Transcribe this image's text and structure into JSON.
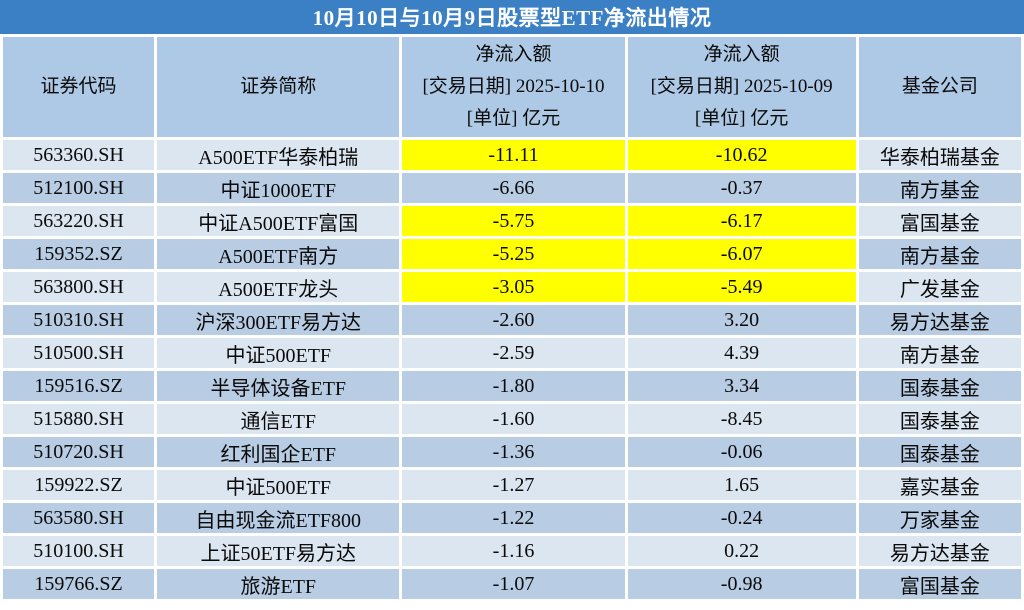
{
  "title": "10月10日与10月9日股票型ETF净流出情况",
  "colors": {
    "title_bar": "#3B7FC4",
    "header_bg": "#AEC9E5",
    "row_light": "#DCE6F1",
    "row_dark": "#B8CCE4",
    "highlight_yellow": "#FFFF00",
    "title_text": "#FFFFFF",
    "body_text": "#0A0A0A"
  },
  "table": {
    "headers": [
      {
        "lines": [
          "证券代码"
        ]
      },
      {
        "lines": [
          "证券简称"
        ]
      },
      {
        "lines": [
          "净流入额",
          "[交易日期] 2025-10-10",
          "[单位] 亿元"
        ]
      },
      {
        "lines": [
          "净流入额",
          "[交易日期] 2025-10-09",
          "[单位] 亿元"
        ]
      },
      {
        "lines": [
          "基金公司"
        ]
      }
    ],
    "rows": [
      {
        "code": "563360.SH",
        "name": "A500ETF华泰柏瑞",
        "flow_1010": "-11.11",
        "flow_1009": "-10.62",
        "company": "华泰柏瑞基金",
        "highlight": true
      },
      {
        "code": "512100.SH",
        "name": "中证1000ETF",
        "flow_1010": "-6.66",
        "flow_1009": "-0.37",
        "company": "南方基金",
        "highlight": false
      },
      {
        "code": "563220.SH",
        "name": "中证A500ETF富国",
        "flow_1010": "-5.75",
        "flow_1009": "-6.17",
        "company": "富国基金",
        "highlight": true
      },
      {
        "code": "159352.SZ",
        "name": "A500ETF南方",
        "flow_1010": "-5.25",
        "flow_1009": "-6.07",
        "company": "南方基金",
        "highlight": true
      },
      {
        "code": "563800.SH",
        "name": "A500ETF龙头",
        "flow_1010": "-3.05",
        "flow_1009": "-5.49",
        "company": "广发基金",
        "highlight": true
      },
      {
        "code": "510310.SH",
        "name": "沪深300ETF易方达",
        "flow_1010": "-2.60",
        "flow_1009": "3.20",
        "company": "易方达基金",
        "highlight": false
      },
      {
        "code": "510500.SH",
        "name": "中证500ETF",
        "flow_1010": "-2.59",
        "flow_1009": "4.39",
        "company": "南方基金",
        "highlight": false
      },
      {
        "code": "159516.SZ",
        "name": "半导体设备ETF",
        "flow_1010": "-1.80",
        "flow_1009": "3.34",
        "company": "国泰基金",
        "highlight": false
      },
      {
        "code": "515880.SH",
        "name": "通信ETF",
        "flow_1010": "-1.60",
        "flow_1009": "-8.45",
        "company": "国泰基金",
        "highlight": false
      },
      {
        "code": "510720.SH",
        "name": "红利国企ETF",
        "flow_1010": "-1.36",
        "flow_1009": "-0.06",
        "company": "国泰基金",
        "highlight": false
      },
      {
        "code": "159922.SZ",
        "name": "中证500ETF",
        "flow_1010": "-1.27",
        "flow_1009": "1.65",
        "company": "嘉实基金",
        "highlight": false
      },
      {
        "code": "563580.SH",
        "name": "自由现金流ETF800",
        "flow_1010": "-1.22",
        "flow_1009": "-0.24",
        "company": "万家基金",
        "highlight": false
      },
      {
        "code": "510100.SH",
        "name": "上证50ETF易方达",
        "flow_1010": "-1.16",
        "flow_1009": "0.22",
        "company": "易方达基金",
        "highlight": false
      },
      {
        "code": "159766.SZ",
        "name": "旅游ETF",
        "flow_1010": "-1.07",
        "flow_1009": "-0.98",
        "company": "富国基金",
        "highlight": false
      }
    ]
  },
  "chart_data": {
    "type": "table",
    "title": "10月10日与10月9日股票型ETF净流出情况",
    "columns": [
      "证券代码",
      "证券简称",
      "净流入额 [交易日期] 2025-10-10 [单位] 亿元",
      "净流入额 [交易日期] 2025-10-09 [单位] 亿元",
      "基金公司"
    ],
    "units": "亿元",
    "rows": [
      [
        "563360.SH",
        "A500ETF华泰柏瑞",
        -11.11,
        -10.62,
        "华泰柏瑞基金"
      ],
      [
        "512100.SH",
        "中证1000ETF",
        -6.66,
        -0.37,
        "南方基金"
      ],
      [
        "563220.SH",
        "中证A500ETF富国",
        -5.75,
        -6.17,
        "富国基金"
      ],
      [
        "159352.SZ",
        "A500ETF南方",
        -5.25,
        -6.07,
        "南方基金"
      ],
      [
        "563800.SH",
        "A500ETF龙头",
        -3.05,
        -5.49,
        "广发基金"
      ],
      [
        "510310.SH",
        "沪深300ETF易方达",
        -2.6,
        3.2,
        "易方达基金"
      ],
      [
        "510500.SH",
        "中证500ETF",
        -2.59,
        4.39,
        "南方基金"
      ],
      [
        "159516.SZ",
        "半导体设备ETF",
        -1.8,
        3.34,
        "国泰基金"
      ],
      [
        "515880.SH",
        "通信ETF",
        -1.6,
        -8.45,
        "国泰基金"
      ],
      [
        "510720.SH",
        "红利国企ETF",
        -1.36,
        -0.06,
        "国泰基金"
      ],
      [
        "159922.SZ",
        "中证500ETF",
        -1.27,
        1.65,
        "嘉实基金"
      ],
      [
        "563580.SH",
        "自由现金流ETF800",
        -1.22,
        -0.24,
        "万家基金"
      ],
      [
        "510100.SH",
        "上证50ETF易方达",
        -1.16,
        0.22,
        "易方达基金"
      ],
      [
        "159766.SZ",
        "旅游ETF",
        -1.07,
        -0.98,
        "富国基金"
      ]
    ],
    "highlighted_rows_yellow": [
      0,
      2,
      3,
      4
    ],
    "highlight_note": "yellow highlight applied to both net-flow value cells of rows listed above"
  }
}
